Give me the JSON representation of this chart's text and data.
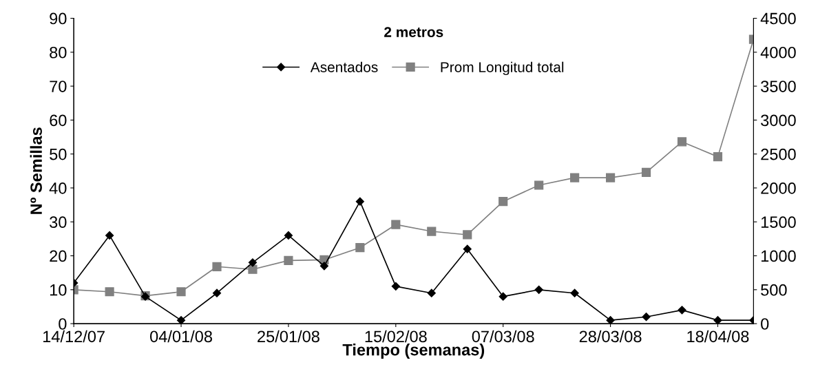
{
  "chart_data": {
    "type": "line",
    "title": "2 metros",
    "xlabel": "Tiempo (semanas)",
    "ylabel": "Nº Semillas",
    "x": [
      "2007-12-14",
      "2007-12-21",
      "2007-12-28",
      "2008-01-04",
      "2008-01-11",
      "2008-01-18",
      "2008-01-25",
      "2008-02-01",
      "2008-02-08",
      "2008-02-15",
      "2008-02-22",
      "2008-02-29",
      "2008-03-07",
      "2008-03-14",
      "2008-03-21",
      "2008-03-28",
      "2008-04-04",
      "2008-04-11",
      "2008-04-18",
      "2008-04-25"
    ],
    "series": [
      {
        "name": "Asentados",
        "color": "#000000",
        "marker": "diamond",
        "values": [
          12,
          26,
          8,
          1,
          9,
          18,
          26,
          17,
          36,
          11,
          9,
          22,
          8,
          10,
          9,
          1,
          2,
          4,
          1,
          1
        ]
      },
      {
        "name": "Prom Longitud total",
        "color": "#808080",
        "marker": "square",
        "axis": "y2",
        "values": [
          500,
          470,
          410,
          470,
          840,
          800,
          930,
          940,
          1120,
          1460,
          1360,
          1310,
          1800,
          2040,
          2150,
          2150,
          2230,
          2680,
          2460,
          4190
        ]
      }
    ],
    "xlim": [
      "2007-12-14",
      "2008-04-25"
    ],
    "xticks": [
      {
        "value": "2007-12-14",
        "label": "14/12/07"
      },
      {
        "value": "2008-01-04",
        "label": "04/01/08"
      },
      {
        "value": "2008-01-25",
        "label": "25/01/08"
      },
      {
        "value": "2008-02-15",
        "label": "15/02/08"
      },
      {
        "value": "2008-03-07",
        "label": "07/03/08"
      },
      {
        "value": "2008-03-28",
        "label": "28/03/08"
      },
      {
        "value": "2008-04-18",
        "label": "18/04/08"
      }
    ],
    "ylim": [
      0,
      90
    ],
    "yticks": [
      0,
      10,
      20,
      30,
      40,
      50,
      60,
      70,
      80,
      90
    ],
    "y2lim": [
      0,
      4500
    ],
    "y2ticks": [
      0,
      500,
      1000,
      1500,
      2000,
      2500,
      3000,
      3500,
      4000,
      4500
    ],
    "grid": false,
    "legend": "top",
    "line_style": "solid"
  }
}
